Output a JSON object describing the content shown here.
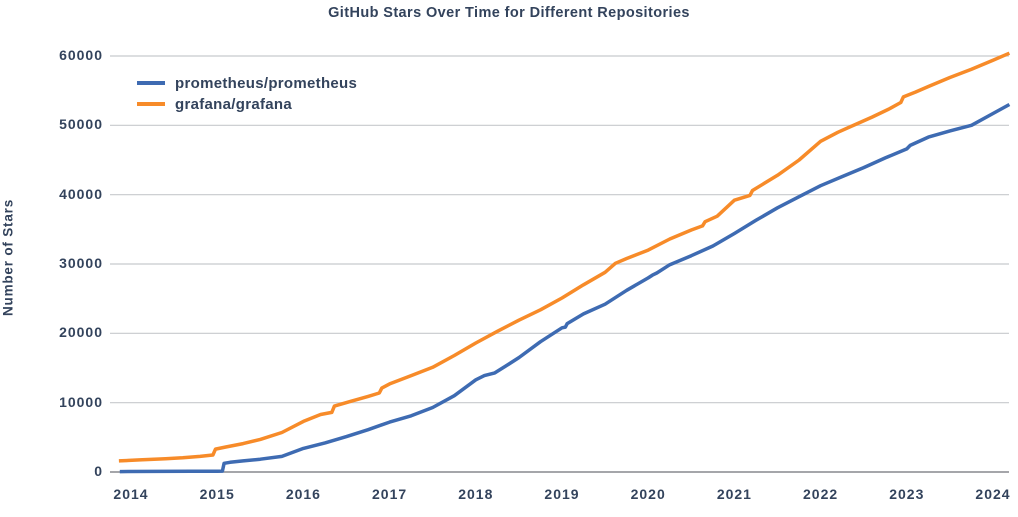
{
  "chart_data": {
    "type": "line",
    "title": "GitHub Stars Over Time for Different Repositories",
    "xlabel": "",
    "ylabel": "Number of Stars",
    "x_ticks": [
      2014,
      2015,
      2016,
      2017,
      2018,
      2019,
      2020,
      2021,
      2022,
      2023,
      2024
    ],
    "y_ticks": [
      0,
      10000,
      20000,
      30000,
      40000,
      50000,
      60000
    ],
    "xlim": [
      2013.8,
      2024.3
    ],
    "ylim": [
      0,
      62000
    ],
    "grid": true,
    "legend_position": "upper-left",
    "colors": {
      "text": "#33435c",
      "gridline": "#c7cacd",
      "axis_line": "#87898d",
      "background": "#ffffff"
    },
    "series": [
      {
        "name": "prometheus/prometheus",
        "color": "#3e6bb2",
        "points": [
          [
            2013.87,
            60
          ],
          [
            2014.3,
            80
          ],
          [
            2014.7,
            100
          ],
          [
            2015.0,
            120
          ],
          [
            2015.06,
            130
          ],
          [
            2015.08,
            1250
          ],
          [
            2015.15,
            1400
          ],
          [
            2015.3,
            1600
          ],
          [
            2015.5,
            1850
          ],
          [
            2015.75,
            2250
          ],
          [
            2016.0,
            3400
          ],
          [
            2016.25,
            4200
          ],
          [
            2016.5,
            5100
          ],
          [
            2016.75,
            6100
          ],
          [
            2017.0,
            7200
          ],
          [
            2017.25,
            8100
          ],
          [
            2017.5,
            9300
          ],
          [
            2017.75,
            11000
          ],
          [
            2018.0,
            13300
          ],
          [
            2018.1,
            13900
          ],
          [
            2018.22,
            14300
          ],
          [
            2018.35,
            15300
          ],
          [
            2018.5,
            16500
          ],
          [
            2018.75,
            18800
          ],
          [
            2019.0,
            20800
          ],
          [
            2019.04,
            20900
          ],
          [
            2019.06,
            21400
          ],
          [
            2019.25,
            22800
          ],
          [
            2019.5,
            24200
          ],
          [
            2019.75,
            26200
          ],
          [
            2020.0,
            28000
          ],
          [
            2020.05,
            28400
          ],
          [
            2020.1,
            28700
          ],
          [
            2020.25,
            29900
          ],
          [
            2020.5,
            31200
          ],
          [
            2020.75,
            32600
          ],
          [
            2021.0,
            34400
          ],
          [
            2021.25,
            36300
          ],
          [
            2021.5,
            38100
          ],
          [
            2021.75,
            39700
          ],
          [
            2022.0,
            41300
          ],
          [
            2022.25,
            42600
          ],
          [
            2022.5,
            43900
          ],
          [
            2022.75,
            45300
          ],
          [
            2023.0,
            46600
          ],
          [
            2023.04,
            47100
          ],
          [
            2023.25,
            48300
          ],
          [
            2023.5,
            49200
          ],
          [
            2023.75,
            50000
          ],
          [
            2024.0,
            51700
          ],
          [
            2024.19,
            53000
          ]
        ]
      },
      {
        "name": "grafana/grafana",
        "color": "#f78b29",
        "points": [
          [
            2013.86,
            1600
          ],
          [
            2014.1,
            1750
          ],
          [
            2014.4,
            1900
          ],
          [
            2014.6,
            2050
          ],
          [
            2014.8,
            2250
          ],
          [
            2014.95,
            2450
          ],
          [
            2014.98,
            3300
          ],
          [
            2015.1,
            3600
          ],
          [
            2015.3,
            4100
          ],
          [
            2015.5,
            4700
          ],
          [
            2015.75,
            5700
          ],
          [
            2016.0,
            7300
          ],
          [
            2016.2,
            8300
          ],
          [
            2016.33,
            8600
          ],
          [
            2016.36,
            9500
          ],
          [
            2016.55,
            10200
          ],
          [
            2016.75,
            10900
          ],
          [
            2016.88,
            11400
          ],
          [
            2016.91,
            12100
          ],
          [
            2017.0,
            12700
          ],
          [
            2017.25,
            13900
          ],
          [
            2017.5,
            15100
          ],
          [
            2017.75,
            16800
          ],
          [
            2018.0,
            18600
          ],
          [
            2018.25,
            20300
          ],
          [
            2018.5,
            21900
          ],
          [
            2018.75,
            23400
          ],
          [
            2019.0,
            25100
          ],
          [
            2019.25,
            27000
          ],
          [
            2019.5,
            28800
          ],
          [
            2019.62,
            30100
          ],
          [
            2019.75,
            30800
          ],
          [
            2020.0,
            32000
          ],
          [
            2020.25,
            33600
          ],
          [
            2020.5,
            34900
          ],
          [
            2020.63,
            35500
          ],
          [
            2020.66,
            36100
          ],
          [
            2020.8,
            36900
          ],
          [
            2021.0,
            39200
          ],
          [
            2021.18,
            39900
          ],
          [
            2021.21,
            40600
          ],
          [
            2021.5,
            42800
          ],
          [
            2021.75,
            45000
          ],
          [
            2022.0,
            47700
          ],
          [
            2022.2,
            49000
          ],
          [
            2022.4,
            50100
          ],
          [
            2022.6,
            51200
          ],
          [
            2022.8,
            52400
          ],
          [
            2022.93,
            53300
          ],
          [
            2022.96,
            54100
          ],
          [
            2023.1,
            54800
          ],
          [
            2023.25,
            55600
          ],
          [
            2023.5,
            56900
          ],
          [
            2023.75,
            58100
          ],
          [
            2024.0,
            59400
          ],
          [
            2024.19,
            60400
          ]
        ]
      }
    ]
  }
}
